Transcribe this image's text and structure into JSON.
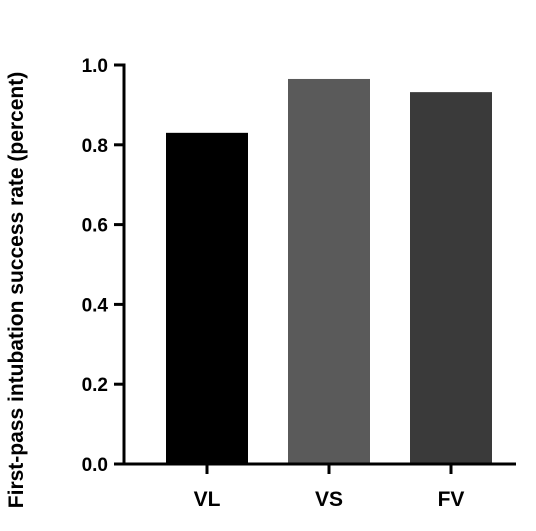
{
  "chart_data": {
    "type": "bar",
    "title": "",
    "xlabel": "",
    "ylabel": "First-pass intubation success rate (percent)",
    "ylim": [
      0,
      1.0
    ],
    "yticks": [
      "0.0",
      "0.2",
      "0.4",
      "0.6",
      "0.8",
      "1.0"
    ],
    "categories": [
      "VL",
      "VS",
      "FV"
    ],
    "values": [
      0.83,
      0.965,
      0.932
    ],
    "bar_colors": [
      "#000000",
      "#5a5a5a",
      "#3a3a3a"
    ],
    "grid": false,
    "legend": "none"
  }
}
